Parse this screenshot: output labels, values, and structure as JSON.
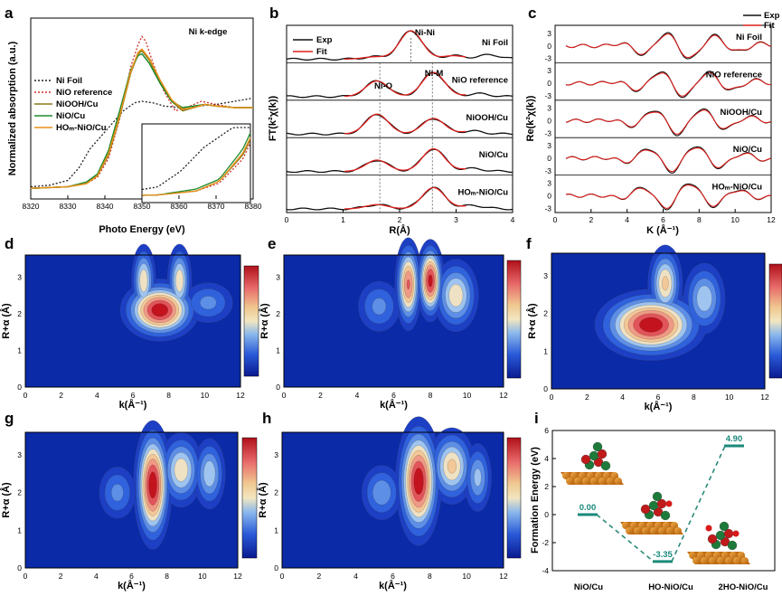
{
  "colors": {
    "ni_foil": "#222222",
    "nio_ref": "#d0302a",
    "niooh": "#8a7a1a",
    "nio_cu": "#1e8a2a",
    "ho_nio": "#e8901a",
    "exp": "#111111",
    "fit": "#e0201c",
    "wt_low": "#0a2aa8",
    "wt_high": "#c8101c",
    "dash": "#2a8a7a",
    "value_box": "#1a8a7a"
  },
  "panel_labels": [
    "a",
    "b",
    "c",
    "d",
    "e",
    "f",
    "g",
    "h",
    "i"
  ],
  "chart_data": [
    {
      "id": "a",
      "type": "line",
      "title": "Ni k-edge",
      "xlabel": "Photo Energy (eV)",
      "ylabel": "Normalized absorption (a.u.)",
      "xlim": [
        8320,
        8380
      ],
      "xticks": [
        8320,
        8330,
        8340,
        8350,
        8360,
        8370,
        8380
      ],
      "legend_position": "top-left",
      "series": [
        {
          "name": "Ni Foil",
          "style": "dotted",
          "color_key": "ni_foil",
          "x": [
            8320,
            8325,
            8330,
            8333,
            8336,
            8339,
            8342,
            8345,
            8348,
            8350,
            8353,
            8356,
            8360,
            8365,
            8370,
            8375,
            8380
          ],
          "y": [
            0.02,
            0.03,
            0.06,
            0.14,
            0.26,
            0.34,
            0.42,
            0.5,
            0.55,
            0.56,
            0.55,
            0.53,
            0.52,
            0.53,
            0.54,
            0.56,
            0.58
          ]
        },
        {
          "name": "NiO reference",
          "style": "dotted",
          "color_key": "nio_ref",
          "x": [
            8320,
            8330,
            8335,
            8338,
            8341,
            8344,
            8347,
            8349,
            8350,
            8351,
            8353,
            8356,
            8359,
            8362,
            8366,
            8370,
            8375,
            8380
          ],
          "y": [
            0.01,
            0.02,
            0.04,
            0.08,
            0.2,
            0.45,
            0.78,
            0.92,
            0.97,
            0.94,
            0.8,
            0.62,
            0.5,
            0.52,
            0.56,
            0.54,
            0.52,
            0.52
          ]
        },
        {
          "name": "NiOOH/Cu",
          "style": "solid",
          "color_key": "niooh",
          "x": [
            8320,
            8330,
            8335,
            8338,
            8341,
            8344,
            8347,
            8349,
            8350,
            8352,
            8355,
            8358,
            8361,
            8364,
            8367,
            8370,
            8375,
            8380
          ],
          "y": [
            0.01,
            0.02,
            0.04,
            0.09,
            0.22,
            0.46,
            0.74,
            0.86,
            0.88,
            0.82,
            0.68,
            0.56,
            0.5,
            0.52,
            0.54,
            0.53,
            0.52,
            0.52
          ]
        },
        {
          "name": "NiO/Cu",
          "style": "solid",
          "color_key": "nio_cu",
          "x": [
            8320,
            8330,
            8335,
            8338,
            8341,
            8344,
            8347,
            8349,
            8350,
            8352,
            8355,
            8358,
            8361,
            8364,
            8367,
            8370,
            8375,
            8380
          ],
          "y": [
            0.01,
            0.02,
            0.05,
            0.1,
            0.25,
            0.5,
            0.76,
            0.85,
            0.86,
            0.8,
            0.67,
            0.56,
            0.52,
            0.53,
            0.54,
            0.53,
            0.52,
            0.52
          ]
        },
        {
          "name": "HOₘ-NiO/Cu",
          "style": "solid",
          "color_key": "ho_nio",
          "x": [
            8320,
            8330,
            8335,
            8338,
            8341,
            8344,
            8347,
            8349,
            8350,
            8352,
            8355,
            8358,
            8361,
            8364,
            8367,
            8370,
            8375,
            8380
          ],
          "y": [
            0.01,
            0.02,
            0.04,
            0.09,
            0.23,
            0.47,
            0.75,
            0.87,
            0.89,
            0.83,
            0.69,
            0.57,
            0.51,
            0.52,
            0.54,
            0.53,
            0.52,
            0.52
          ]
        }
      ]
    },
    {
      "id": "b",
      "type": "line",
      "xlabel": "R(Å)",
      "ylabel": "FT(k²χ(k))",
      "xlim": [
        0,
        4
      ],
      "xticks": [
        0,
        1,
        2,
        3,
        4
      ],
      "legend": [
        "Exp",
        "Fit"
      ],
      "legend_position": "top-left",
      "annotations": [
        "Ni-Ni",
        "Ni-M",
        "Ni-O"
      ],
      "guide_lines_x": [
        1.65,
        2.58
      ],
      "rows": [
        {
          "label": "Ni Foil",
          "peaks": [
            [
              1.55,
              0.08
            ],
            [
              2.2,
              1.0
            ],
            [
              2.95,
              0.12
            ],
            [
              3.6,
              0.15
            ]
          ]
        },
        {
          "label": "NiO reference",
          "peaks": [
            [
              1.6,
              0.55
            ],
            [
              2.6,
              0.85
            ],
            [
              3.4,
              0.1
            ]
          ]
        },
        {
          "label": "NiOOH/Cu",
          "peaks": [
            [
              1.6,
              0.7
            ],
            [
              2.6,
              0.55
            ],
            [
              3.3,
              0.1
            ]
          ]
        },
        {
          "label": "NiO/Cu",
          "peaks": [
            [
              1.6,
              0.4
            ],
            [
              2.6,
              0.8
            ],
            [
              3.3,
              0.1
            ]
          ]
        },
        {
          "label": "HOₘ-NiO/Cu",
          "peaks": [
            [
              1.6,
              0.15
            ],
            [
              2.6,
              0.75
            ],
            [
              3.3,
              0.12
            ]
          ]
        }
      ]
    },
    {
      "id": "c",
      "type": "line",
      "xlabel": "K (Å⁻¹)",
      "ylabel": "Re(k²χ(k))",
      "xlim": [
        0,
        12
      ],
      "xticks": [
        0,
        2,
        4,
        6,
        8,
        10,
        12
      ],
      "yticks": [
        -3,
        0,
        3,
        6
      ],
      "legend": [
        "Exp",
        "Fit"
      ],
      "legend_position": "top-right",
      "rows": [
        {
          "label": "Ni Foil"
        },
        {
          "label": "NiO reference"
        },
        {
          "label": "NiOOH/Cu"
        },
        {
          "label": "NiO/Cu"
        },
        {
          "label": "HOₘ-NiO/Cu"
        }
      ]
    },
    {
      "id": "d",
      "type": "heatmap",
      "xlabel": "k(Å⁻¹)",
      "ylabel": "R+α (Å)",
      "xlim": [
        0,
        12
      ],
      "ylim": [
        0,
        3.6
      ],
      "xticks": [
        0,
        2,
        4,
        6,
        8,
        10,
        12
      ],
      "yticks": [
        0,
        1,
        2,
        3
      ],
      "lobes": [
        [
          7.5,
          2.1,
          1.4,
          0.45,
          1.0
        ],
        [
          6.6,
          2.9,
          0.5,
          0.6,
          0.55
        ],
        [
          8.6,
          2.9,
          0.5,
          0.6,
          0.55
        ],
        [
          10.2,
          2.3,
          1.2,
          0.4,
          0.3
        ]
      ],
      "colorbar": true
    },
    {
      "id": "e",
      "type": "heatmap",
      "xlabel": "k(Å⁻¹)",
      "ylabel": "R+α (Å)",
      "xlim": [
        0,
        12
      ],
      "ylim": [
        0,
        3.6
      ],
      "xticks": [
        0,
        2,
        4,
        6,
        8,
        10,
        12
      ],
      "yticks": [
        0,
        1,
        2,
        3
      ],
      "lobes": [
        [
          6.8,
          2.8,
          0.5,
          0.7,
          0.8
        ],
        [
          8.0,
          2.9,
          0.5,
          0.6,
          0.95
        ],
        [
          9.4,
          2.5,
          0.9,
          0.6,
          0.55
        ],
        [
          5.2,
          2.2,
          1.0,
          0.5,
          0.3
        ]
      ],
      "colorbar": true
    },
    {
      "id": "f",
      "type": "heatmap",
      "xlabel": "k(Å⁻¹)",
      "ylabel": "R+α (Å)",
      "xlim": [
        0,
        12
      ],
      "ylim": [
        0,
        3.6
      ],
      "xticks": [
        0,
        2,
        4,
        6,
        8,
        10,
        12
      ],
      "yticks": [
        0,
        1,
        2,
        3
      ],
      "lobes": [
        [
          5.6,
          1.7,
          2.0,
          0.5,
          1.0
        ],
        [
          6.4,
          2.8,
          0.7,
          0.6,
          0.6
        ],
        [
          8.6,
          2.4,
          0.9,
          0.6,
          0.45
        ]
      ],
      "colorbar": true
    },
    {
      "id": "g",
      "type": "heatmap",
      "xlabel": "k(Å⁻¹)",
      "ylabel": "R+α (Å)",
      "xlim": [
        0,
        12
      ],
      "ylim": [
        0,
        3.6
      ],
      "xticks": [
        0,
        2,
        4,
        6,
        8,
        10,
        12
      ],
      "yticks": [
        0,
        1,
        2,
        3
      ],
      "lobes": [
        [
          7.2,
          2.2,
          0.7,
          0.9,
          1.0
        ],
        [
          8.8,
          2.6,
          0.9,
          0.6,
          0.55
        ],
        [
          10.4,
          2.5,
          0.7,
          0.6,
          0.45
        ],
        [
          5.2,
          2.0,
          0.9,
          0.5,
          0.3
        ]
      ],
      "colorbar": true
    },
    {
      "id": "h",
      "type": "heatmap",
      "xlabel": "k(Å⁻¹)",
      "ylabel": "R+α (Å)",
      "xlim": [
        0,
        12
      ],
      "ylim": [
        0,
        3.6
      ],
      "xticks": [
        0,
        2,
        4,
        6,
        8,
        10,
        12
      ],
      "yticks": [
        0,
        1,
        2,
        3
      ],
      "lobes": [
        [
          7.4,
          2.3,
          0.8,
          0.9,
          1.0
        ],
        [
          9.2,
          2.7,
          0.9,
          0.6,
          0.6
        ],
        [
          10.6,
          2.4,
          0.6,
          0.6,
          0.4
        ],
        [
          5.4,
          2.0,
          0.9,
          0.5,
          0.35
        ]
      ],
      "colorbar": true
    },
    {
      "id": "i",
      "type": "scatter",
      "ylabel": "Formation Energy (eV)",
      "ylim": [
        -4,
        6
      ],
      "yticks": [
        -4,
        -2,
        0,
        2,
        4,
        6
      ],
      "categories": [
        "NiO/Cu",
        "HO-NiO/Cu",
        "2HO-NiO/Cu"
      ],
      "values": [
        0.0,
        -3.35,
        4.9
      ],
      "value_labels": [
        "0.00",
        "-3.35",
        "4.90"
      ]
    }
  ]
}
